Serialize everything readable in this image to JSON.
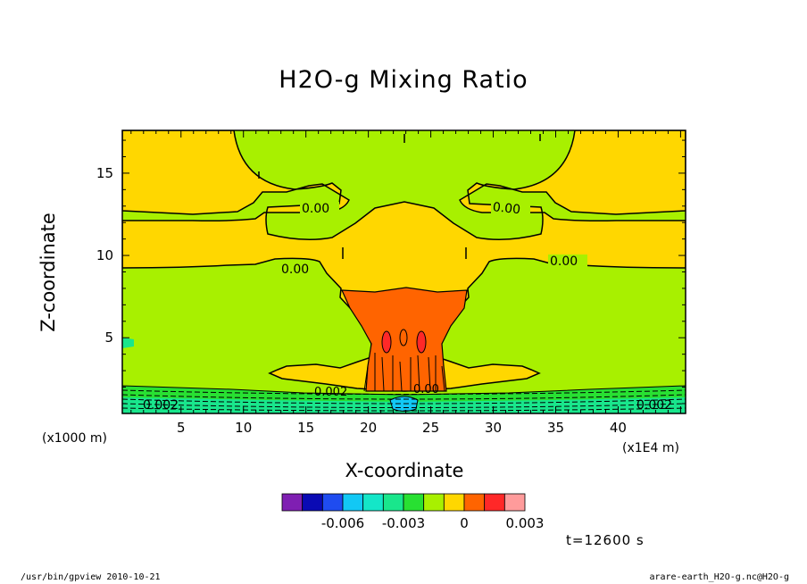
{
  "chart_data": {
    "type": "contour",
    "title": "H2O-g Mixing Ratio",
    "xlabel": "X-coordinate",
    "ylabel": "Z-coordinate",
    "x_unit_left": "(x1000 m)",
    "x_unit_right": "(x1E4 m)",
    "xlim": [
      0.3,
      45.4
    ],
    "ylim": [
      0.4,
      17.6
    ],
    "x_ticks": [
      5,
      10,
      15,
      20,
      25,
      30,
      35,
      40
    ],
    "y_ticks": [
      5,
      10,
      15
    ],
    "time_label": "t=12600 s",
    "contour_labels": [
      "0.00",
      "0.00",
      "0.00",
      "0.00",
      "0.002",
      "0.002",
      "0.002",
      "0.00"
    ],
    "colorbar": {
      "colors": [
        "#7f1fb2",
        "#0a0ab4",
        "#1f4cf0",
        "#12c8f5",
        "#14e6c8",
        "#19e68c",
        "#28e032",
        "#a8f000",
        "#ffd700",
        "#ff6400",
        "#ff2828",
        "#ff9b9b"
      ],
      "tick_labels": [
        "-0.006",
        "-0.003",
        "0",
        "0.003"
      ],
      "tick_values": [
        -0.006,
        -0.003,
        0,
        0.003
      ]
    },
    "fields": {
      "background": "#a8f000",
      "upper_layer": "#ffd700",
      "core": "#ff6400",
      "core_max": "#ff2828",
      "surface_negative": "#28e032",
      "surface_min": "#12c8f5"
    }
  },
  "footer": {
    "left": "/usr/bin/gpview   2010-10-21",
    "right": "arare-earth_H2O-g.nc@H2O-g"
  }
}
